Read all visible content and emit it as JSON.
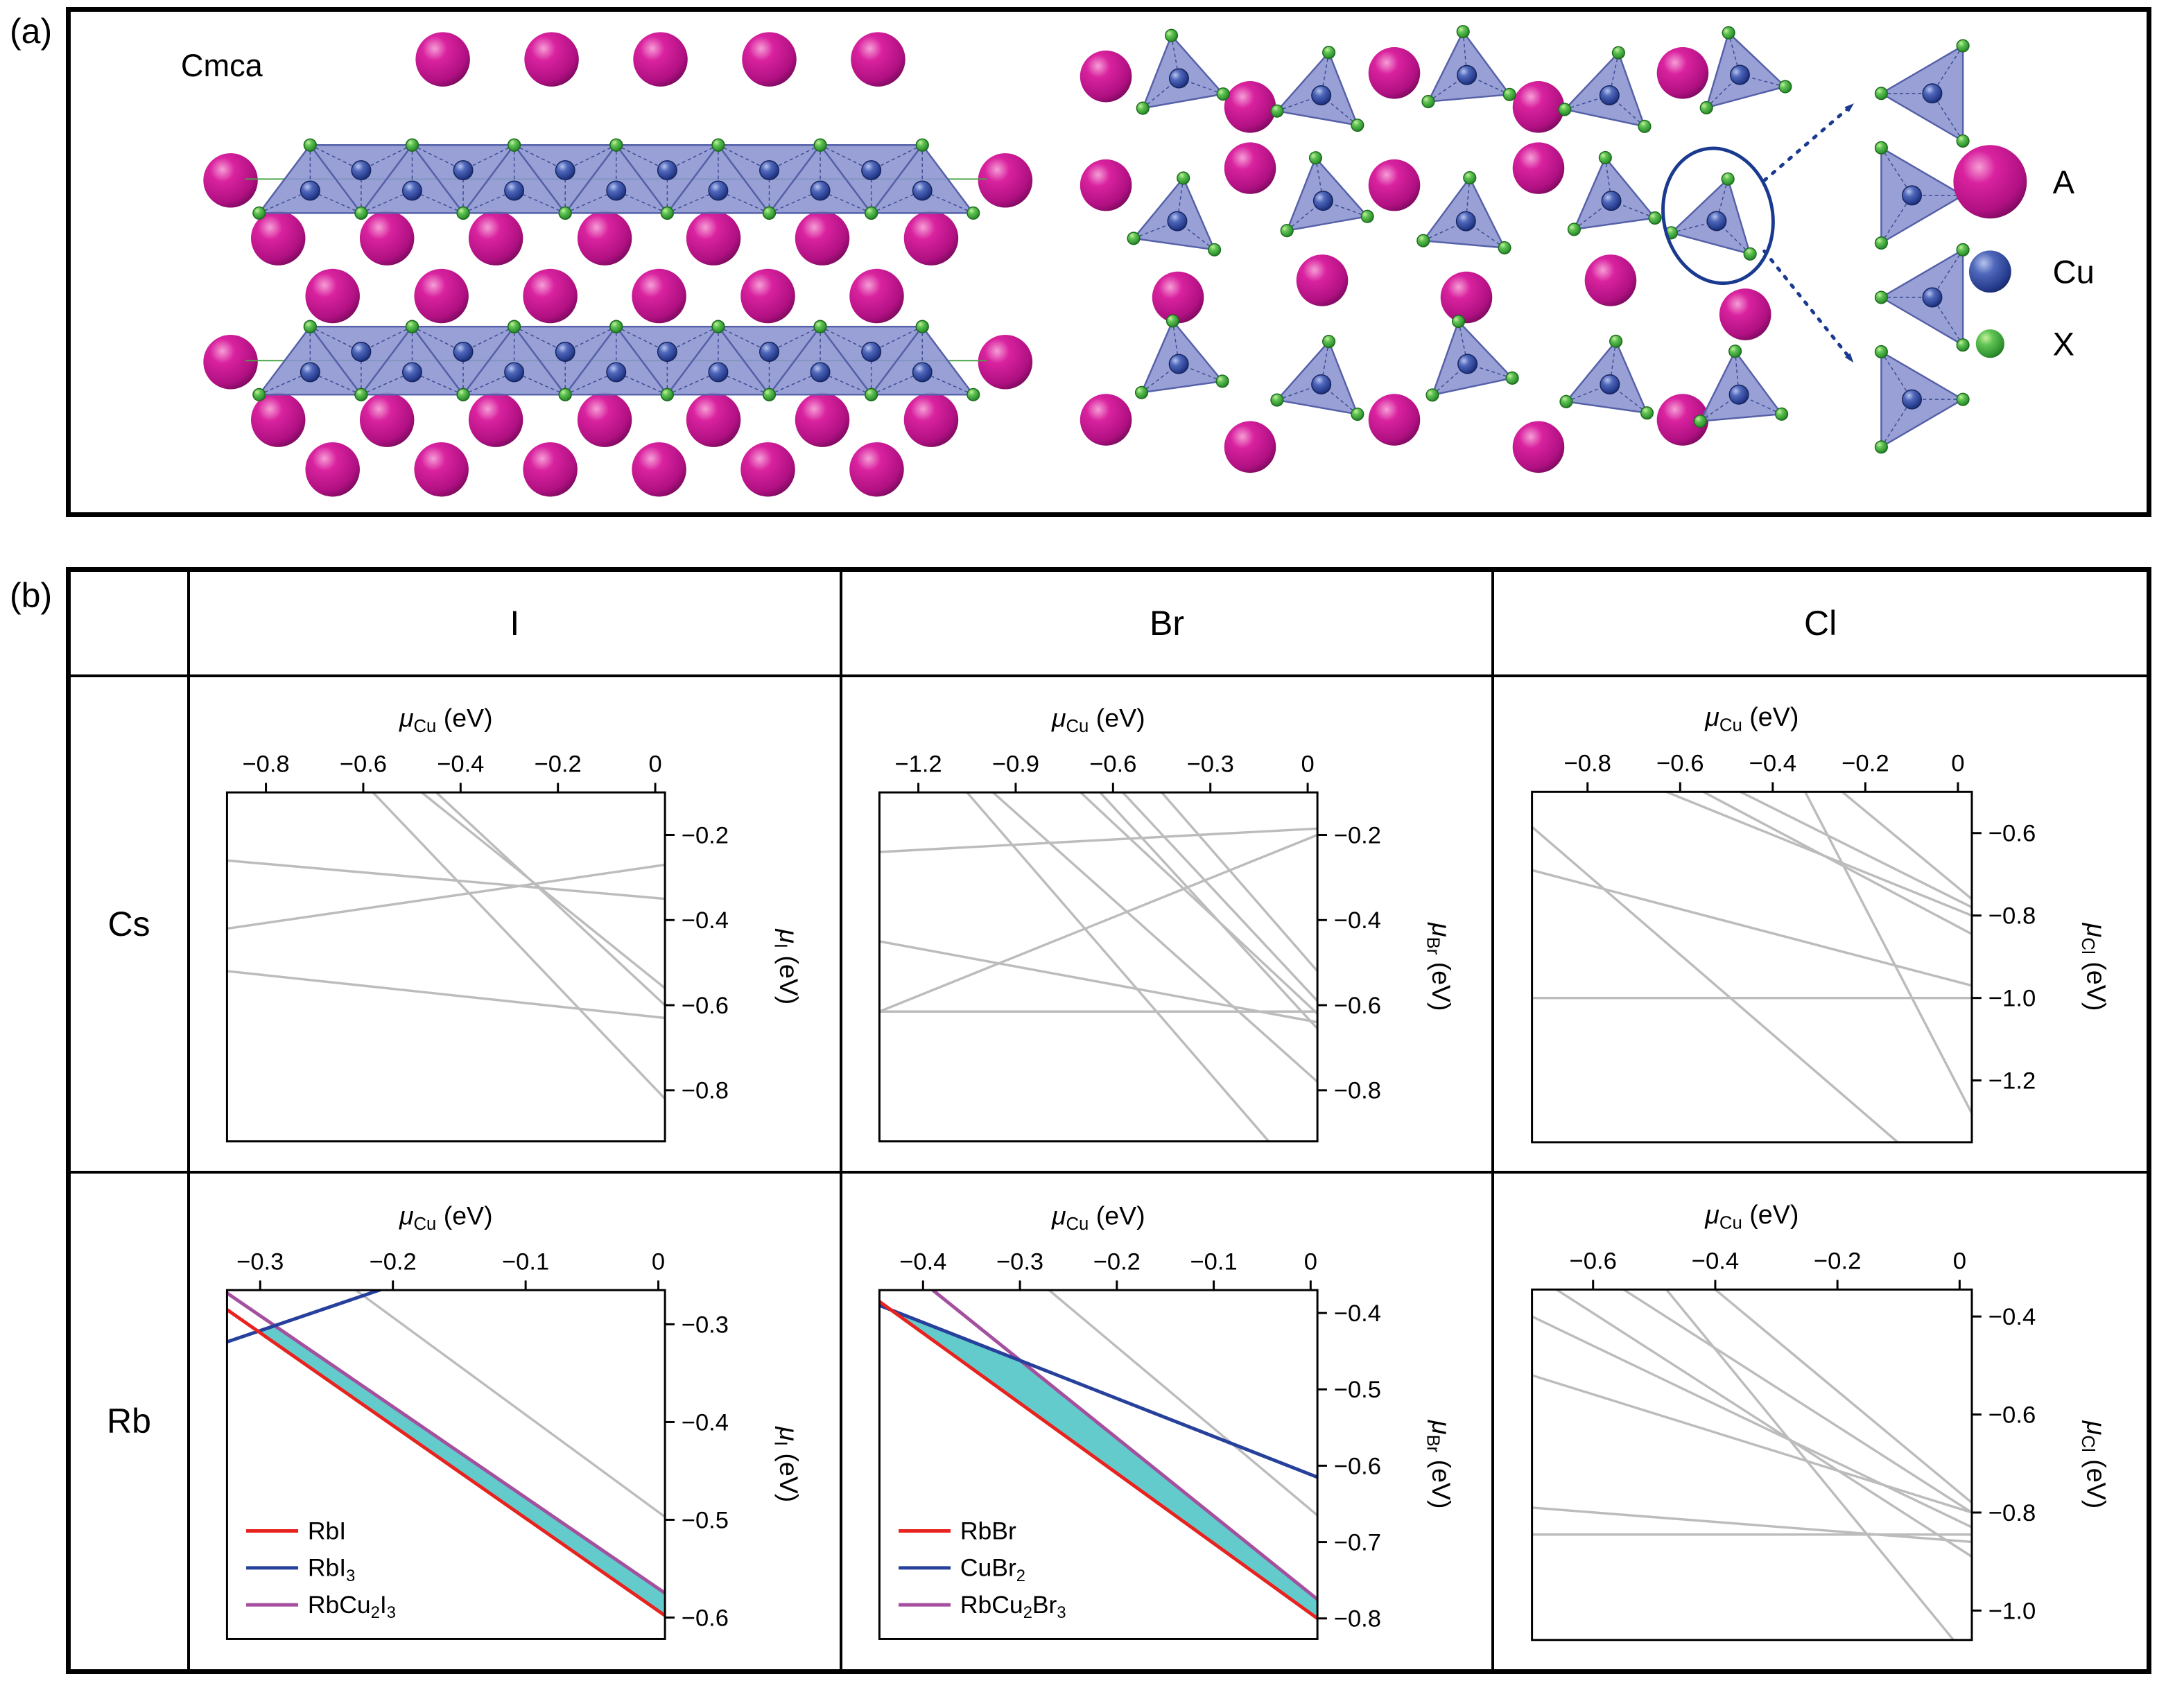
{
  "panel_a": {
    "label": "(a)",
    "space_group": "Cmca",
    "legend": [
      {
        "name": "A",
        "atom": "magenta-sphere"
      },
      {
        "name": "Cu",
        "atom": "blue-sphere"
      },
      {
        "name": "X",
        "atom": "green-sphere"
      }
    ]
  },
  "panel_b": {
    "label": "(b)",
    "col_headers": [
      "I",
      "Br",
      "Cl"
    ],
    "row_headers": [
      "Cs",
      "Rb"
    ]
  },
  "colors": {
    "gray": "#bcbcbc",
    "red": "#e8231f",
    "blue": "#27409c",
    "purple": "#a4509f",
    "teal": "#63cbcb",
    "highlight": "#1a3a8f",
    "sphere_a": "#c4188c",
    "sphere_cu": "#3a57a7",
    "sphere_x": "#44b449"
  },
  "chart_data": [
    {
      "id": "cs-i",
      "type": "line",
      "element": "Cs",
      "halide": "I",
      "xlabel": "μ_Cu (eV)",
      "ylabel": "μ_I (eV)",
      "xlabel_segs": [
        [
          "μ",
          "i"
        ],
        [
          "Cu",
          "sub"
        ],
        [
          " (eV)",
          "n"
        ]
      ],
      "ylabel_segs": [
        [
          "μ",
          "i"
        ],
        [
          "I",
          "sub"
        ],
        [
          " (eV)",
          "n"
        ]
      ],
      "xlim": [
        -0.88,
        0.02
      ],
      "ylim": [
        -0.92,
        -0.1
      ],
      "xticks": [
        -0.8,
        -0.6,
        -0.4,
        -0.2,
        0
      ],
      "yticks": [
        -0.2,
        -0.4,
        -0.6,
        -0.8
      ],
      "lines": [
        [
          -0.48,
          -0.1,
          0.02,
          -0.56,
          "gray"
        ],
        [
          -0.45,
          -0.1,
          0.02,
          -0.6,
          "gray"
        ],
        [
          -0.88,
          -0.26,
          0.02,
          -0.35,
          "gray"
        ],
        [
          -0.88,
          -0.42,
          0.02,
          -0.27,
          "gray"
        ],
        [
          -0.88,
          -0.52,
          0.02,
          -0.63,
          "gray"
        ],
        [
          -0.58,
          -0.1,
          0.02,
          -0.82,
          "gray"
        ]
      ]
    },
    {
      "id": "cs-br",
      "type": "line",
      "element": "Cs",
      "halide": "Br",
      "xlabel": "μ_Cu (eV)",
      "ylabel": "μ_Br (eV)",
      "xlabel_segs": [
        [
          "μ",
          "i"
        ],
        [
          "Cu",
          "sub"
        ],
        [
          " (eV)",
          "n"
        ]
      ],
      "ylabel_segs": [
        [
          "μ",
          "i"
        ],
        [
          "Br",
          "sub"
        ],
        [
          " (eV)",
          "n"
        ]
      ],
      "xlim": [
        -1.32,
        0.03
      ],
      "ylim": [
        -0.92,
        -0.1
      ],
      "xticks": [
        -1.2,
        -0.9,
        -0.6,
        -0.3,
        0
      ],
      "yticks": [
        -0.2,
        -0.4,
        -0.6,
        -0.8
      ],
      "lines": [
        [
          -1.32,
          -0.24,
          0.03,
          -0.185,
          "gray"
        ],
        [
          -1.05,
          -0.1,
          -0.12,
          -0.92,
          "gray"
        ],
        [
          -0.97,
          -0.1,
          0.03,
          -0.78,
          "gray"
        ],
        [
          -0.7,
          -0.1,
          0.03,
          -0.62,
          "gray"
        ],
        [
          -0.64,
          -0.1,
          0.03,
          -0.655,
          "gray"
        ],
        [
          -0.57,
          -0.1,
          0.03,
          -0.59,
          "gray"
        ],
        [
          -1.32,
          -0.615,
          0.03,
          -0.615,
          "gray"
        ],
        [
          -1.32,
          -0.615,
          0.03,
          -0.2,
          "gray"
        ],
        [
          -1.32,
          -0.45,
          0.03,
          -0.64,
          "gray"
        ],
        [
          -0.45,
          -0.1,
          0.03,
          -0.52,
          "gray"
        ]
      ]
    },
    {
      "id": "cs-cl",
      "type": "line",
      "element": "Cs",
      "halide": "Cl",
      "xlabel": "μ_Cu (eV)",
      "ylabel": "μ_Cl (eV)",
      "xlabel_segs": [
        [
          "μ",
          "i"
        ],
        [
          "Cu",
          "sub"
        ],
        [
          " (eV)",
          "n"
        ]
      ],
      "ylabel_segs": [
        [
          "μ",
          "i"
        ],
        [
          "Cl",
          "sub"
        ],
        [
          " (eV)",
          "n"
        ]
      ],
      "xlim": [
        -0.92,
        0.03
      ],
      "ylim": [
        -1.35,
        -0.5
      ],
      "xticks": [
        -0.8,
        -0.6,
        -0.4,
        -0.2,
        0
      ],
      "yticks": [
        -0.6,
        -0.8,
        -1.0,
        -1.2
      ],
      "lines": [
        [
          -0.92,
          -1.0,
          0.03,
          -1.0,
          "gray"
        ],
        [
          -0.92,
          -0.585,
          -0.13,
          -1.35,
          "gray"
        ],
        [
          -0.92,
          -0.69,
          0.03,
          -0.97,
          "gray"
        ],
        [
          -0.63,
          -0.5,
          0.03,
          -0.8,
          "gray"
        ],
        [
          -0.55,
          -0.5,
          0.03,
          -0.845,
          "gray"
        ],
        [
          -0.47,
          -0.5,
          0.03,
          -0.78,
          "gray"
        ],
        [
          -0.33,
          -0.5,
          0.03,
          -1.28,
          "gray"
        ],
        [
          -0.25,
          -0.5,
          0.03,
          -0.76,
          "gray"
        ]
      ]
    },
    {
      "id": "rb-i",
      "type": "line",
      "element": "Rb",
      "halide": "I",
      "xlabel": "μ_Cu (eV)",
      "ylabel": "μ_I (eV)",
      "xlabel_segs": [
        [
          "μ",
          "i"
        ],
        [
          "Cu",
          "sub"
        ],
        [
          " (eV)",
          "n"
        ]
      ],
      "ylabel_segs": [
        [
          "μ",
          "i"
        ],
        [
          "I",
          "sub"
        ],
        [
          " (eV)",
          "n"
        ]
      ],
      "xlim": [
        -0.325,
        0.005
      ],
      "ylim": [
        -0.622,
        -0.265
      ],
      "xticks": [
        -0.3,
        -0.2,
        -0.1,
        0
      ],
      "yticks": [
        -0.3,
        -0.4,
        -0.5,
        -0.6
      ],
      "region": {
        "color": "teal",
        "points": [
          [
            -0.3016,
            -0.3072
          ],
          [
            -0.289,
            -0.3014
          ],
          [
            0.005,
            -0.575
          ],
          [
            0.005,
            -0.598
          ]
        ]
      },
      "lines": [
        [
          -0.228,
          -0.265,
          0.005,
          -0.497,
          "gray"
        ],
        [
          -0.325,
          -0.268,
          0.005,
          -0.575,
          "purple"
        ],
        [
          -0.325,
          -0.318,
          -0.195,
          -0.258,
          "blue"
        ],
        [
          -0.325,
          -0.285,
          0.005,
          -0.598,
          "red"
        ]
      ],
      "legend": [
        {
          "c": "red",
          "text": "RbI",
          "segs": [
            [
              "RbI",
              "n"
            ]
          ]
        },
        {
          "c": "blue",
          "text": "RbI3",
          "segs": [
            [
              "RbI",
              "n"
            ],
            [
              "3",
              "sub"
            ]
          ]
        },
        {
          "c": "purple",
          "text": "RbCu2I3",
          "segs": [
            [
              "RbCu",
              "n"
            ],
            [
              "2",
              "sub"
            ],
            [
              "I",
              "n"
            ],
            [
              "3",
              "sub"
            ]
          ]
        }
      ]
    },
    {
      "id": "rb-br",
      "type": "line",
      "element": "Rb",
      "halide": "Br",
      "xlabel": "μ_Cu (eV)",
      "ylabel": "μ_Br (eV)",
      "xlabel_segs": [
        [
          "μ",
          "i"
        ],
        [
          "Cu",
          "sub"
        ],
        [
          " (eV)",
          "n"
        ]
      ],
      "ylabel_segs": [
        [
          "μ",
          "i"
        ],
        [
          "Br",
          "sub"
        ],
        [
          " (eV)",
          "n"
        ]
      ],
      "xlim": [
        -0.445,
        0.007
      ],
      "ylim": [
        -0.827,
        -0.37
      ],
      "xticks": [
        -0.4,
        -0.3,
        -0.2,
        -0.1,
        0
      ],
      "yticks": [
        -0.4,
        -0.5,
        -0.6,
        -0.7,
        -0.8
      ],
      "region": {
        "color": "teal",
        "points": [
          [
            -0.433,
            -0.396
          ],
          [
            -0.3,
            -0.462
          ],
          [
            0.007,
            -0.775
          ],
          [
            0.007,
            -0.8
          ]
        ]
      },
      "lines": [
        [
          -0.27,
          -0.37,
          0.007,
          -0.665,
          "gray"
        ],
        [
          -0.39,
          -0.37,
          0.007,
          -0.775,
          "purple"
        ],
        [
          -0.445,
          -0.39,
          0.007,
          -0.615,
          "blue"
        ],
        [
          -0.445,
          -0.385,
          0.007,
          -0.8,
          "red"
        ]
      ],
      "legend": [
        {
          "c": "red",
          "text": "RbBr",
          "segs": [
            [
              "RbBr",
              "n"
            ]
          ]
        },
        {
          "c": "blue",
          "text": "CuBr2",
          "segs": [
            [
              "CuBr",
              "n"
            ],
            [
              "2",
              "sub"
            ]
          ]
        },
        {
          "c": "purple",
          "text": "RbCu2Br3",
          "segs": [
            [
              "RbCu",
              "n"
            ],
            [
              "2",
              "sub"
            ],
            [
              "Br",
              "n"
            ],
            [
              "3",
              "sub"
            ]
          ]
        }
      ]
    },
    {
      "id": "rb-cl",
      "type": "line",
      "element": "Rb",
      "halide": "Cl",
      "xlabel": "μ_Cu (eV)",
      "ylabel": "μ_Cl (eV)",
      "xlabel_segs": [
        [
          "μ",
          "i"
        ],
        [
          "Cu",
          "sub"
        ],
        [
          " (eV)",
          "n"
        ]
      ],
      "ylabel_segs": [
        [
          "μ",
          "i"
        ],
        [
          "Cl",
          "sub"
        ],
        [
          " (eV)",
          "n"
        ]
      ],
      "xlim": [
        -0.7,
        0.02
      ],
      "ylim": [
        -1.06,
        -0.345
      ],
      "xticks": [
        -0.6,
        -0.4,
        -0.2,
        0
      ],
      "yticks": [
        -0.4,
        -0.6,
        -0.8,
        -1.0
      ],
      "lines": [
        [
          -0.7,
          -0.4,
          0.02,
          -0.83,
          "gray"
        ],
        [
          -0.66,
          -0.345,
          0.02,
          -0.89,
          "gray"
        ],
        [
          -0.55,
          -0.345,
          0.02,
          -0.8,
          "gray"
        ],
        [
          -0.48,
          -0.345,
          -0.01,
          -1.06,
          "gray"
        ],
        [
          -0.4,
          -0.345,
          0.02,
          -0.78,
          "gray"
        ],
        [
          -0.7,
          -0.52,
          0.02,
          -0.8,
          "gray"
        ],
        [
          -0.7,
          -0.845,
          0.02,
          -0.845,
          "gray"
        ],
        [
          -0.7,
          -0.79,
          0.02,
          -0.86,
          "gray"
        ]
      ]
    }
  ]
}
